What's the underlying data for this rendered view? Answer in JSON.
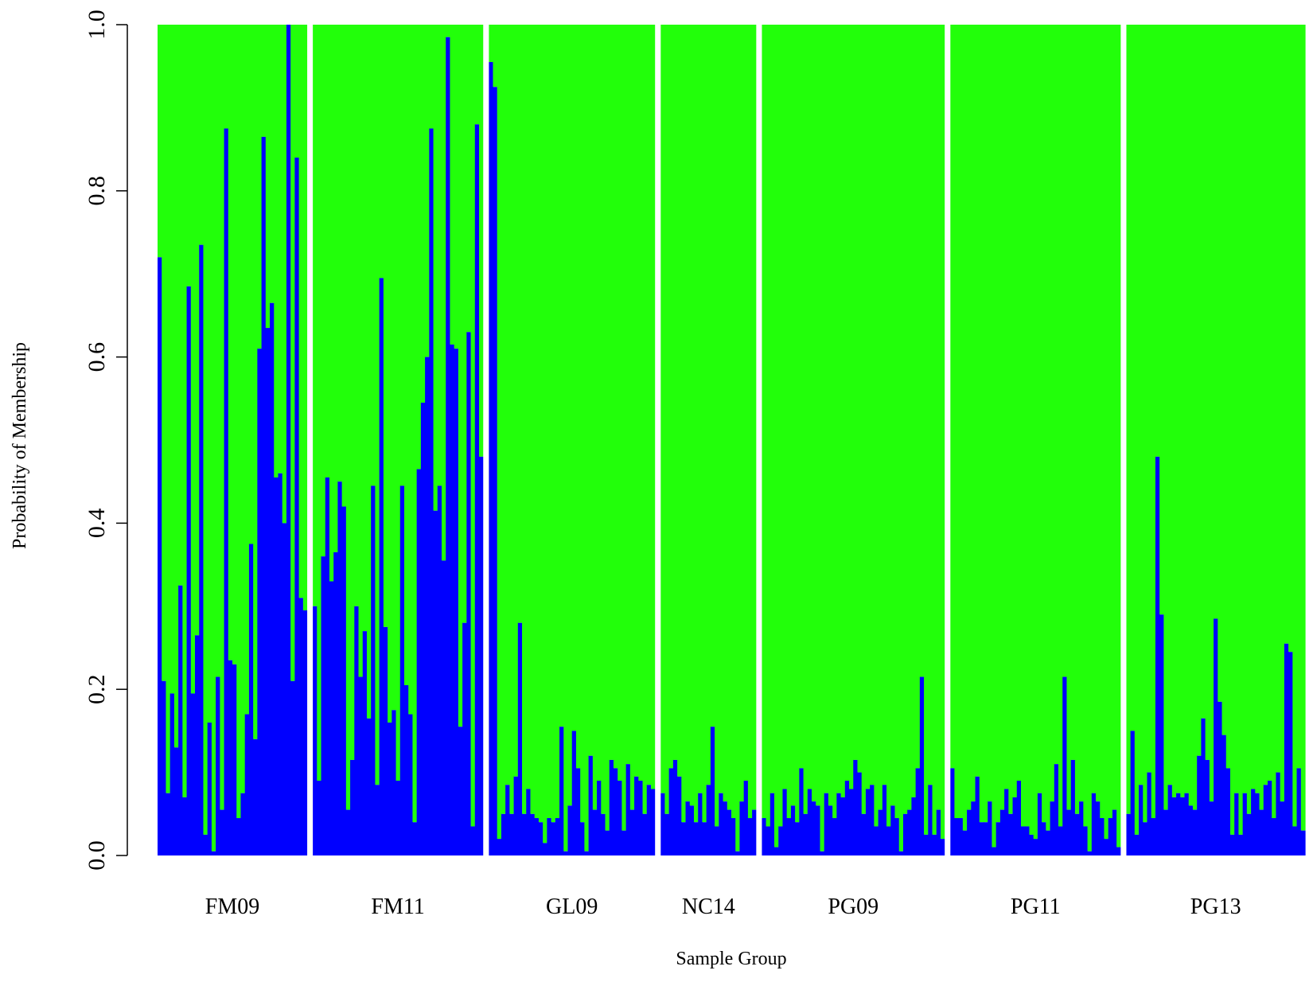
{
  "chart_data": {
    "type": "bar",
    "stacked": true,
    "title": "",
    "xlabel": "Sample Group",
    "ylabel": "Probability of Membership",
    "ylim": [
      0,
      1
    ],
    "yticks": [
      0,
      0.2,
      0.4,
      0.6,
      0.8,
      1
    ],
    "ytick_labels": [
      "0.0",
      "0.2",
      "0.4",
      "0.6",
      "0.8",
      "1.0"
    ],
    "grid": false,
    "legend": "none",
    "colors": {
      "cluster_1": "#0000ff",
      "cluster_2": "#22ff0a",
      "separator": "#ffffff"
    },
    "note_series": "blue = membership probability for cluster 1; green = 1 - blue (cluster 2)",
    "groups": [
      {
        "name": "FM09",
        "values": [
          0.72,
          0.21,
          0.075,
          0.195,
          0.13,
          0.325,
          0.07,
          0.685,
          0.195,
          0.265,
          0.735,
          0.025,
          0.16,
          0.005,
          0.215,
          0.055,
          0.875,
          0.235,
          0.23,
          0.045,
          0.075,
          0.17,
          0.375,
          0.14,
          0.61,
          0.865,
          0.635,
          0.665,
          0.455,
          0.46,
          0.4,
          1.0,
          0.21,
          0.84,
          0.31,
          0.295
        ]
      },
      {
        "name": "FM11",
        "values": [
          0.3,
          0.09,
          0.36,
          0.455,
          0.33,
          0.365,
          0.45,
          0.42,
          0.055,
          0.115,
          0.3,
          0.215,
          0.27,
          0.165,
          0.445,
          0.085,
          0.695,
          0.275,
          0.16,
          0.175,
          0.09,
          0.445,
          0.205,
          0.17,
          0.04,
          0.465,
          0.545,
          0.6,
          0.875,
          0.415,
          0.445,
          0.355,
          0.985,
          0.615,
          0.61,
          0.155,
          0.28,
          0.63,
          0.035,
          0.88,
          0.48
        ]
      },
      {
        "name": "GL09",
        "values": [
          0.955,
          0.925,
          0.02,
          0.05,
          0.085,
          0.05,
          0.095,
          0.28,
          0.05,
          0.08,
          0.05,
          0.045,
          0.04,
          0.015,
          0.045,
          0.04,
          0.045,
          0.155,
          0.005,
          0.06,
          0.15,
          0.105,
          0.04,
          0.005,
          0.12,
          0.055,
          0.09,
          0.05,
          0.03,
          0.115,
          0.105,
          0.09,
          0.03,
          0.11,
          0.055,
          0.095,
          0.09,
          0.05,
          0.085,
          0.08
        ]
      },
      {
        "name": "NC14",
        "values": [
          0.075,
          0.05,
          0.105,
          0.115,
          0.095,
          0.04,
          0.065,
          0.06,
          0.04,
          0.075,
          0.04,
          0.085,
          0.155,
          0.035,
          0.075,
          0.065,
          0.055,
          0.045,
          0.005,
          0.065,
          0.09,
          0.045,
          0.055
        ]
      },
      {
        "name": "PG09",
        "values": [
          0.045,
          0.035,
          0.075,
          0.01,
          0.035,
          0.08,
          0.045,
          0.06,
          0.04,
          0.105,
          0.05,
          0.08,
          0.065,
          0.06,
          0.005,
          0.075,
          0.06,
          0.045,
          0.075,
          0.07,
          0.09,
          0.08,
          0.115,
          0.1,
          0.05,
          0.08,
          0.085,
          0.035,
          0.055,
          0.085,
          0.035,
          0.06,
          0.045,
          0.005,
          0.05,
          0.055,
          0.07,
          0.105,
          0.215,
          0.025,
          0.085,
          0.025,
          0.055,
          0.02
        ]
      },
      {
        "name": "PG11",
        "values": [
          0.105,
          0.045,
          0.045,
          0.03,
          0.055,
          0.065,
          0.095,
          0.04,
          0.04,
          0.065,
          0.01,
          0.04,
          0.055,
          0.08,
          0.05,
          0.07,
          0.09,
          0.035,
          0.035,
          0.025,
          0.02,
          0.075,
          0.04,
          0.03,
          0.065,
          0.11,
          0.035,
          0.215,
          0.055,
          0.115,
          0.05,
          0.065,
          0.035,
          0.005,
          0.075,
          0.065,
          0.045,
          0.02,
          0.045,
          0.055,
          0.01
        ]
      },
      {
        "name": "PG13",
        "values": [
          0.05,
          0.15,
          0.025,
          0.085,
          0.04,
          0.1,
          0.045,
          0.48,
          0.29,
          0.055,
          0.085,
          0.07,
          0.075,
          0.07,
          0.075,
          0.06,
          0.055,
          0.12,
          0.165,
          0.115,
          0.065,
          0.285,
          0.185,
          0.145,
          0.105,
          0.025,
          0.075,
          0.025,
          0.075,
          0.05,
          0.08,
          0.075,
          0.055,
          0.085,
          0.09,
          0.045,
          0.1,
          0.065,
          0.255,
          0.245,
          0.035,
          0.105,
          0.03
        ]
      }
    ]
  }
}
